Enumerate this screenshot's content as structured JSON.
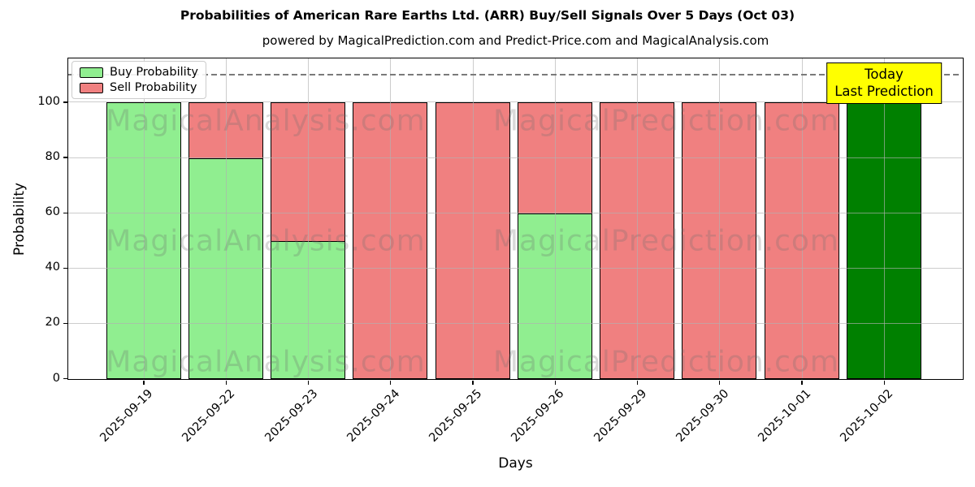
{
  "header": {
    "title": "Probabilities of American Rare Earths Ltd. (ARR) Buy/Sell Signals Over 5 Days (Oct 03)",
    "subtitle": "powered by MagicalPrediction.com and Predict-Price.com and MagicalAnalysis.com"
  },
  "chart_data": {
    "type": "bar",
    "stacked": true,
    "title": "Probabilities of American Rare Earths Ltd. (ARR) Buy/Sell Signals Over 5 Days (Oct 03)",
    "xlabel": "Days",
    "ylabel": "Probability",
    "categories": [
      "2025-09-19",
      "2025-09-22",
      "2025-09-23",
      "2025-09-24",
      "2025-09-25",
      "2025-09-26",
      "2025-09-29",
      "2025-09-30",
      "2025-10-01",
      "2025-10-02"
    ],
    "series": [
      {
        "name": "Buy Probability",
        "color": "#90EE90",
        "values": [
          100,
          80,
          50,
          0,
          0,
          60,
          0,
          0,
          0,
          0
        ]
      },
      {
        "name": "Sell Probability",
        "color": "#F08080",
        "values": [
          0,
          20,
          50,
          100,
          100,
          40,
          100,
          100,
          100,
          0
        ]
      }
    ],
    "today_bar": {
      "index": 9,
      "value": 100,
      "color": "#008000",
      "label": "Today Last Prediction"
    },
    "ylim": [
      0,
      115.7
    ],
    "yticks": [
      0,
      20,
      40,
      60,
      80,
      100
    ],
    "dashed_line_y": 110,
    "grid": true,
    "legend_position": "upper left",
    "bar_edge_color": "#000000"
  },
  "legend": {
    "items": [
      {
        "label": "Buy Probability",
        "color": "#90EE90"
      },
      {
        "label": "Sell Probability",
        "color": "#F08080"
      }
    ]
  },
  "annotation": {
    "line1": "Today",
    "line2": "Last Prediction",
    "bg_color": "#FFFF00"
  },
  "watermarks": {
    "left_text": "MagicalAnalysis.com",
    "right_text": "MagicalPrediction.com",
    "rows": 3
  },
  "colors": {
    "buy": "#90EE90",
    "sell": "#F08080",
    "today": "#008000",
    "annotation_bg": "#FFFF00",
    "dashed_line": "#7a7a7a",
    "grid": "#b0b0b0"
  }
}
